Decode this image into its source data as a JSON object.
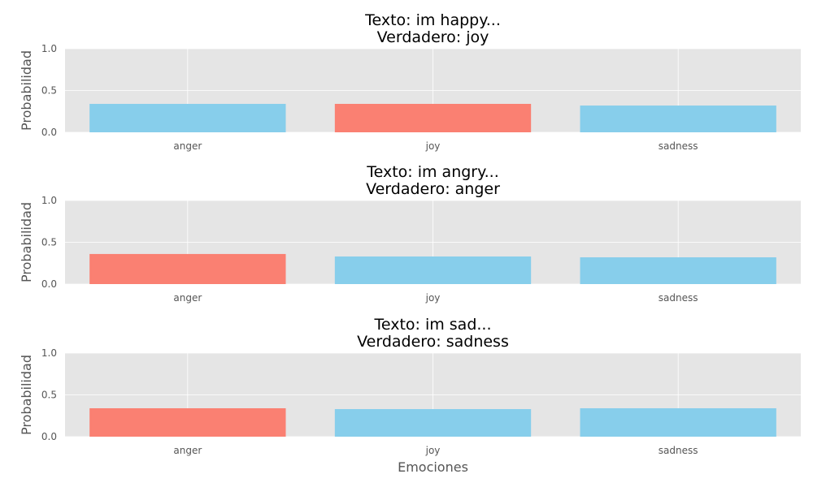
{
  "chart_data": [
    {
      "type": "bar",
      "title_line1": "Texto: im happy...",
      "title_line2": "Verdadero: joy",
      "ylabel": "Probabilidad",
      "xlabel": "",
      "categories": [
        "anger",
        "joy",
        "sadness"
      ],
      "values": [
        0.34,
        0.34,
        0.32
      ],
      "highlight_index": 1,
      "ylim": [
        0,
        1.0
      ],
      "yticks": [
        "0.0",
        "0.5",
        "1.0"
      ],
      "grid": true
    },
    {
      "type": "bar",
      "title_line1": "Texto: im angry...",
      "title_line2": "Verdadero: anger",
      "ylabel": "Probabilidad",
      "xlabel": "",
      "categories": [
        "anger",
        "joy",
        "sadness"
      ],
      "values": [
        0.36,
        0.33,
        0.32
      ],
      "highlight_index": 0,
      "ylim": [
        0,
        1.0
      ],
      "yticks": [
        "0.0",
        "0.5",
        "1.0"
      ],
      "grid": true
    },
    {
      "type": "bar",
      "title_line1": "Texto: im sad...",
      "title_line2": "Verdadero: sadness",
      "ylabel": "Probabilidad",
      "xlabel": "Emociones",
      "categories": [
        "anger",
        "joy",
        "sadness"
      ],
      "values": [
        0.34,
        0.33,
        0.34
      ],
      "highlight_index": 0,
      "ylim": [
        0,
        1.0
      ],
      "yticks": [
        "0.0",
        "0.5",
        "1.0"
      ],
      "grid": true
    }
  ],
  "colors": {
    "bar_default": "#87ceeb",
    "bar_highlight": "#fa8072",
    "panel_background": "#e5e5e5",
    "grid": "#ffffff"
  }
}
